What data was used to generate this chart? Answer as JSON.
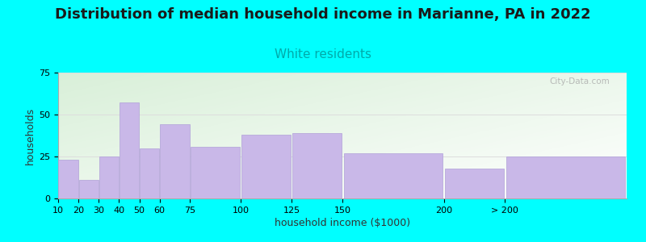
{
  "title": "Distribution of median household income in Marianne, PA in 2022",
  "subtitle": "White residents",
  "xlabel": "household income ($1000)",
  "ylabel": "households",
  "bar_color": "#C9B8E8",
  "bar_edgecolor": "#B0A0D8",
  "background_color": "#00FFFF",
  "plot_bg_left": "#D8F0D8",
  "plot_bg_right": "#FFFFFF",
  "categories": [
    "10",
    "20",
    "30",
    "40",
    "50",
    "60",
    "75",
    "100",
    "125",
    "150",
    "200",
    "> 200"
  ],
  "values": [
    23,
    11,
    25,
    57,
    30,
    44,
    31,
    38,
    39,
    27,
    18,
    25
  ],
  "left_edges": [
    10,
    20,
    30,
    40,
    50,
    60,
    75,
    100,
    125,
    150,
    200,
    230
  ],
  "right_edges": [
    20,
    30,
    40,
    50,
    60,
    75,
    100,
    125,
    150,
    200,
    230,
    290
  ],
  "xlim_left": 10,
  "xlim_right": 290,
  "ylim": [
    0,
    75
  ],
  "yticks": [
    0,
    25,
    50,
    75
  ],
  "title_fontsize": 13,
  "subtitle_fontsize": 11,
  "subtitle_color": "#00AAAA",
  "axis_label_fontsize": 9,
  "tick_fontsize": 8,
  "watermark_text": "City-Data.com",
  "watermark_color": "#AAAAAA",
  "tick_positions": [
    10,
    20,
    30,
    40,
    50,
    60,
    75,
    100,
    125,
    150,
    200,
    230
  ],
  "tick_labels": [
    "10",
    "20",
    "30",
    "40",
    "50",
    "60",
    "75",
    "100",
    "125",
    "150",
    "200",
    "> 200"
  ]
}
